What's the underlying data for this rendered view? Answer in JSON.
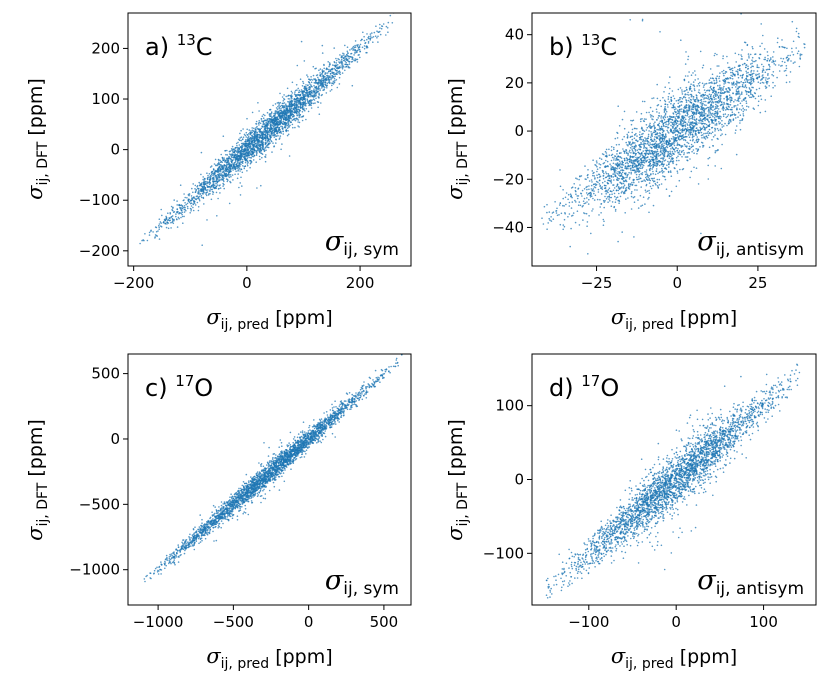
{
  "chart_data": [
    {
      "type": "scatter",
      "panel_label": "a)",
      "isotope_mass": "13",
      "isotope_element": "C",
      "xlabel_symbol": "σ",
      "xlabel_sub": "ij, pred",
      "ylabel_symbol": "σ",
      "ylabel_sub": "ij, DFT",
      "unit": "[ppm]",
      "annotation_symbol": "σ",
      "annotation_sub": "ij, sym",
      "xlim": [
        -210,
        290
      ],
      "ylim": [
        -230,
        270
      ],
      "xticks": [
        -200,
        0,
        200
      ],
      "xtick_labels": [
        "−200",
        "0",
        "200"
      ],
      "yticks": [
        -200,
        -100,
        0,
        100,
        200
      ],
      "ytick_labels": [
        "−200",
        "−100",
        "0",
        "100",
        "200"
      ],
      "point_color": "#1f77b4",
      "series": [
        {
          "name": "sym",
          "x_range": [
            -190,
            265
          ],
          "slope": 1.0,
          "spread": 12,
          "n_points": 3000
        }
      ]
    },
    {
      "type": "scatter",
      "panel_label": "b)",
      "isotope_mass": "13",
      "isotope_element": "C",
      "xlabel_symbol": "σ",
      "xlabel_sub": "ij, pred",
      "ylabel_symbol": "σ",
      "ylabel_sub": "ij, DFT",
      "unit": "[ppm]",
      "annotation_symbol": "σ",
      "annotation_sub": "ij, antisym",
      "xlim": [
        -45,
        43
      ],
      "ylim": [
        -56,
        49
      ],
      "xticks": [
        -25,
        0,
        25
      ],
      "xtick_labels": [
        "−25",
        "0",
        "25"
      ],
      "yticks": [
        -40,
        -20,
        0,
        20,
        40
      ],
      "ytick_labels": [
        "−40",
        "−20",
        "0",
        "20",
        "40"
      ],
      "point_color": "#1f77b4",
      "series": [
        {
          "name": "antisym",
          "x_range": [
            -42,
            40
          ],
          "slope": 0.9,
          "spread": 6,
          "n_points": 3000
        }
      ]
    },
    {
      "type": "scatter",
      "panel_label": "c)",
      "isotope_mass": "17",
      "isotope_element": "O",
      "xlabel_symbol": "σ",
      "xlabel_sub": "ij, pred",
      "ylabel_symbol": "σ",
      "ylabel_sub": "ij, DFT",
      "unit": "[ppm]",
      "annotation_symbol": "σ",
      "annotation_sub": "ij, sym",
      "xlim": [
        -1200,
        680
      ],
      "ylim": [
        -1270,
        650
      ],
      "xticks": [
        -1000,
        -500,
        0,
        500
      ],
      "xtick_labels": [
        "−1000",
        "−500",
        "0",
        "500"
      ],
      "yticks": [
        -1000,
        -500,
        0,
        500
      ],
      "ytick_labels": [
        "−1000",
        "−500",
        "0",
        "500"
      ],
      "point_color": "#1f77b4",
      "series": [
        {
          "name": "sym",
          "x_range": [
            -1120,
            620
          ],
          "slope": 1.0,
          "spread": 30,
          "n_points": 3000
        }
      ]
    },
    {
      "type": "scatter",
      "panel_label": "d)",
      "isotope_mass": "17",
      "isotope_element": "O",
      "xlabel_symbol": "σ",
      "xlabel_sub": "ij, pred",
      "ylabel_symbol": "σ",
      "ylabel_sub": "ij, DFT",
      "unit": "[ppm]",
      "annotation_symbol": "σ",
      "annotation_sub": "ij, antisym",
      "xlim": [
        -165,
        160
      ],
      "ylim": [
        -170,
        170
      ],
      "xticks": [
        -100,
        0,
        100
      ],
      "xtick_labels": [
        "−100",
        "0",
        "100"
      ],
      "yticks": [
        -100,
        0,
        100
      ],
      "ytick_labels": [
        "−100",
        "0",
        "100"
      ],
      "point_color": "#1f77b4",
      "series": [
        {
          "name": "antisym",
          "x_range": [
            -150,
            145
          ],
          "slope": 1.0,
          "spread": 13,
          "n_points": 3000
        }
      ]
    }
  ]
}
